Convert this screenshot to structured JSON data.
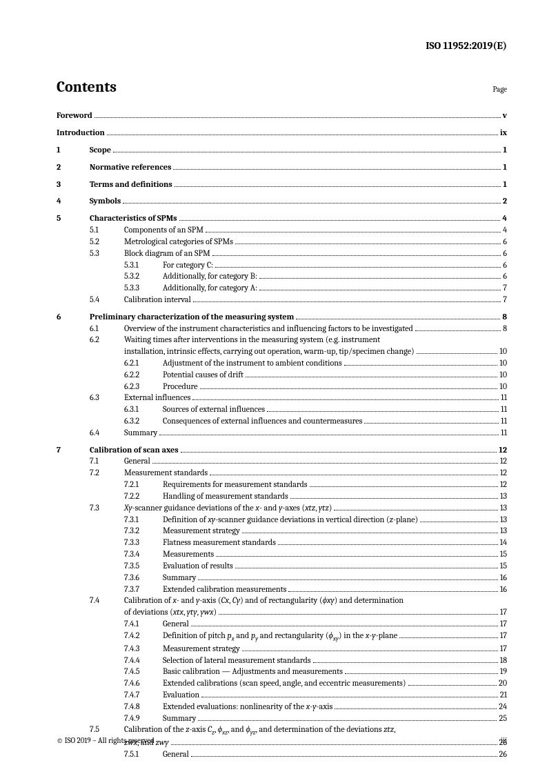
{
  "doc_id": "ISO 11952:2019(E)",
  "title": "Contents",
  "page_label": "Page",
  "footer_left": "© ISO 2019 – All rights reserved",
  "footer_right": "iii",
  "entries": [
    {
      "type": "top",
      "bold": true,
      "label": "Foreword",
      "page": "v",
      "space": false
    },
    {
      "type": "top",
      "bold": true,
      "label": "Introduction",
      "page": "ix",
      "space": true
    },
    {
      "type": "l1",
      "num": "1",
      "label": "Scope",
      "page": "1",
      "space": true
    },
    {
      "type": "l1",
      "num": "2",
      "label": "Normative references",
      "page": "1",
      "space": true
    },
    {
      "type": "l1",
      "num": "3",
      "label": "Terms and definitions",
      "page": "1",
      "space": true
    },
    {
      "type": "l1",
      "num": "4",
      "label": "Symbols",
      "page": "2",
      "space": true
    },
    {
      "type": "l1",
      "num": "5",
      "label": "Characteristics of SPMs",
      "page": "4",
      "space": true
    },
    {
      "type": "l2",
      "num": "5.1",
      "label": "Components of an SPM",
      "page": "4"
    },
    {
      "type": "l2",
      "num": "5.2",
      "label": "Metrological categories of SPMs",
      "page": "6"
    },
    {
      "type": "l2",
      "num": "5.3",
      "label": "Block diagram of an SPM",
      "page": "6"
    },
    {
      "type": "l3",
      "num": "5.3.1",
      "label": "For category C:",
      "page": "6"
    },
    {
      "type": "l3",
      "num": "5.3.2",
      "label": "Additionally, for category B:",
      "page": "6"
    },
    {
      "type": "l3",
      "num": "5.3.3",
      "label": "Additionally, for category A:",
      "page": "7"
    },
    {
      "type": "l2",
      "num": "5.4",
      "label": "Calibration interval",
      "page": "7"
    },
    {
      "type": "l1",
      "num": "6",
      "label": "Preliminary characterization of the measuring system",
      "page": "8",
      "space": true
    },
    {
      "type": "l2",
      "num": "6.1",
      "label": "Overview of the instrument characteristics and influencing factors to be investigated",
      "page": "8"
    },
    {
      "type": "l2-noleader",
      "num": "6.2",
      "label": "Waiting times after interventions in the measuring system (e.g. instrument"
    },
    {
      "type": "cont",
      "label": "installation, intrinsic effects, carrying out operation, warm-up, tip/specimen change)",
      "page": "10"
    },
    {
      "type": "l3",
      "num": "6.2.1",
      "label": "Adjustment of the instrument to ambient conditions",
      "page": "10"
    },
    {
      "type": "l3",
      "num": "6.2.2",
      "label": "Potential causes of drift",
      "page": "10"
    },
    {
      "type": "l3",
      "num": "6.2.3",
      "label": "Procedure",
      "page": "10"
    },
    {
      "type": "l2",
      "num": "6.3",
      "label": "External influences",
      "page": "11"
    },
    {
      "type": "l3",
      "num": "6.3.1",
      "label": "Sources of external influences",
      "page": "11"
    },
    {
      "type": "l3",
      "num": "6.3.2",
      "label": "Consequences of external influences and countermeasures",
      "page": "11"
    },
    {
      "type": "l2",
      "num": "6.4",
      "label": "Summary",
      "page": "11"
    },
    {
      "type": "l1",
      "num": "7",
      "label": "Calibration of scan axes",
      "page": "12",
      "space": true
    },
    {
      "type": "l2",
      "num": "7.1",
      "label": "General",
      "page": "12"
    },
    {
      "type": "l2",
      "num": "7.2",
      "label": "Measurement standards",
      "page": "12"
    },
    {
      "type": "l3",
      "num": "7.2.1",
      "label": "Requirements for measurement standards",
      "page": "12"
    },
    {
      "type": "l3",
      "num": "7.2.2",
      "label": "Handling of measurement standards",
      "page": "13"
    },
    {
      "type": "l2",
      "num": "7.3",
      "label_html": "<span class='italic'>Xy</span>-scanner guidance deviations of the <span class='italic'>x</span>- and <span class='italic'>y</span>-axes (<span class='italic'>xtz</span>, <span class='italic'>ytz</span>)",
      "page": "13"
    },
    {
      "type": "l3",
      "num": "7.3.1",
      "label_html": "Definition of <span class='italic'>xy</span>-scanner guidance deviations in vertical direction (<span class='italic'>z</span>-plane)",
      "page": "13"
    },
    {
      "type": "l3",
      "num": "7.3.2",
      "label": "Measurement strategy",
      "page": "13"
    },
    {
      "type": "l3",
      "num": "7.3.3",
      "label": "Flatness measurement standards",
      "page": "14"
    },
    {
      "type": "l3",
      "num": "7.3.4",
      "label": "Measurements",
      "page": "15"
    },
    {
      "type": "l3",
      "num": "7.3.5",
      "label": "Evaluation of results",
      "page": "15"
    },
    {
      "type": "l3",
      "num": "7.3.6",
      "label": "Summary",
      "page": "16"
    },
    {
      "type": "l3",
      "num": "7.3.7",
      "label": "Extended calibration measurements",
      "page": "16"
    },
    {
      "type": "l2-noleader",
      "num": "7.4",
      "label_html": "Calibration of <span class='italic'>x</span>- and <span class='italic'>y</span>-axis (<span class='italic'>Cx</span>, <span class='italic'>Cy</span>) and of rectangularity (<span class='italic'>ϕxy</span>) and determination"
    },
    {
      "type": "cont",
      "label_html": "of deviations (<span class='italic'>xtx</span>, <span class='italic'>yty</span>, <span class='italic'>ywx</span>)",
      "page": "17"
    },
    {
      "type": "l3",
      "num": "7.4.1",
      "label": "General",
      "page": "17"
    },
    {
      "type": "l3",
      "num": "7.4.2",
      "label_html": "Definition of pitch <span class='italic'>p<sub>x</sub></span> and <span class='italic'>p<sub>y</sub></span> and rectangularity (<span class='italic'>ϕ<sub>xy</sub></span>) in the <span class='italic'>x</span>-<span class='italic'>y</span>-plane",
      "page": "17"
    },
    {
      "type": "l3",
      "num": "7.4.3",
      "label": "Measurement strategy",
      "page": "17"
    },
    {
      "type": "l3",
      "num": "7.4.4",
      "label": "Selection of lateral measurement standards",
      "page": "18"
    },
    {
      "type": "l3",
      "num": "7.4.5",
      "label": "Basic calibration — Adjustments and measurements",
      "page": "19"
    },
    {
      "type": "l3",
      "num": "7.4.6",
      "label": "Extended calibrations (scan speed, angle, and eccentric measurements)",
      "page": "20"
    },
    {
      "type": "l3",
      "num": "7.4.7",
      "label": "Evaluation",
      "page": "21"
    },
    {
      "type": "l3",
      "num": "7.4.8",
      "label_html": "Extended evaluations: nonlinearity of the <span class='italic'>x</span>-<span class='italic'>y</span>-axis",
      "page": "24"
    },
    {
      "type": "l3",
      "num": "7.4.9",
      "label": "Summary",
      "page": "25"
    },
    {
      "type": "l2-noleader",
      "num": "7.5",
      "label_html": "Calibration of the <span class='italic'>z</span>-axis <span class='italic'>C<sub>z</sub></span>, <span class='italic'>ϕ<sub>xz</sub></span>, and <span class='italic'>ϕ<sub>yz</sub></span>, and determination of the deviations <span class='italic'>ztz</span>,"
    },
    {
      "type": "cont",
      "label_html": "<span class='italic'>zwx</span>, and <span class='italic'>zwy</span>",
      "page": "26"
    },
    {
      "type": "l3",
      "num": "7.5.1",
      "label": "General",
      "page": "26"
    }
  ]
}
